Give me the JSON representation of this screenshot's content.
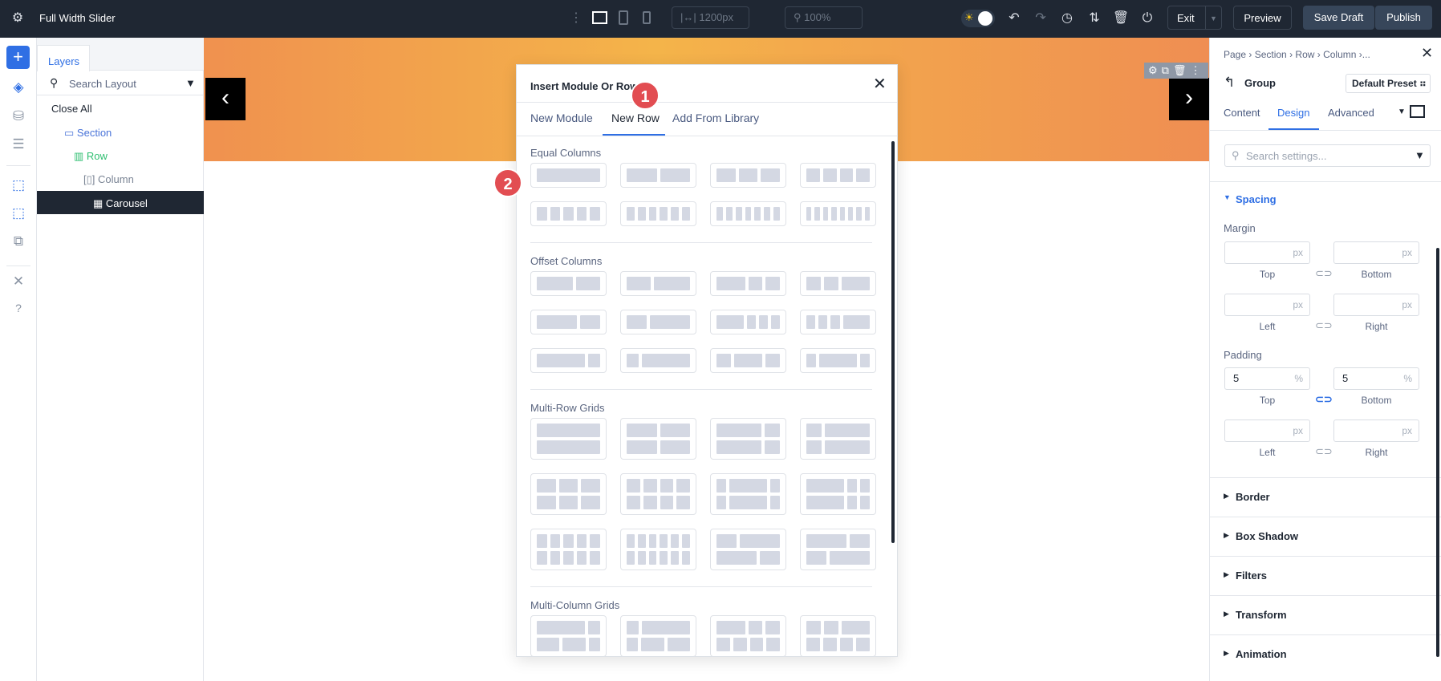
{
  "topbar": {
    "title": "Full Width Slider",
    "width_value": "1200px",
    "zoom_value": "100%",
    "exit": "Exit",
    "preview": "Preview",
    "save_draft": "Save Draft",
    "publish": "Publish",
    "icons": [
      "gear-icon",
      "more-vertical-icon",
      "desktop-icon",
      "tablet-icon",
      "phone-icon",
      "width-icon",
      "zoom-icon",
      "theme-toggle",
      "undo-icon",
      "redo-icon",
      "history-icon",
      "sort-icon",
      "trash-icon",
      "power-icon"
    ]
  },
  "layers": {
    "tab": "Layers",
    "search_placeholder": "Search Layout",
    "close_all": "Close All",
    "items": [
      {
        "label": "Section",
        "color": "#4a74d9"
      },
      {
        "label": "Row",
        "color": "#2fbf71"
      },
      {
        "label": "Column",
        "color": "#7a8494"
      },
      {
        "label": "Carousel",
        "color": "#ffffff"
      }
    ]
  },
  "modal": {
    "title": "Insert Module Or Row",
    "tabs": [
      "New Module",
      "New Row",
      "Add From Library"
    ],
    "active_tab": "New Row",
    "sections": [
      {
        "label": "Equal Columns",
        "layouts": [
          [
            [
              1
            ]
          ],
          [
            [
              1,
              1
            ]
          ],
          [
            [
              1,
              1,
              1
            ]
          ],
          [
            [
              1,
              1,
              1,
              1
            ]
          ],
          [
            [
              1,
              1,
              1,
              1,
              1
            ]
          ],
          [
            [
              1,
              1,
              1,
              1,
              1,
              1
            ]
          ],
          [
            [
              1,
              1,
              1,
              1,
              1,
              1,
              1
            ]
          ],
          [
            [
              1,
              1,
              1,
              1,
              1,
              1,
              1,
              1
            ]
          ]
        ]
      },
      {
        "label": "Offset Columns",
        "layouts": [
          [
            [
              3,
              2
            ]
          ],
          [
            [
              2,
              3
            ]
          ],
          [
            [
              2,
              1,
              1
            ]
          ],
          [
            [
              1,
              1,
              2
            ]
          ],
          [
            [
              2,
              1
            ]
          ],
          [
            [
              1,
              2
            ]
          ],
          [
            [
              3,
              1,
              1,
              1
            ]
          ],
          [
            [
              1,
              1,
              1,
              3
            ]
          ],
          [
            [
              4,
              1
            ]
          ],
          [
            [
              1,
              4
            ]
          ],
          [
            [
              1,
              2,
              1
            ]
          ],
          [
            [
              1,
              4,
              1
            ]
          ]
        ]
      },
      {
        "label": "Multi-Row Grids",
        "layouts": [
          [
            [
              1
            ],
            [
              1
            ]
          ],
          [
            [
              1,
              1
            ],
            [
              1,
              1
            ]
          ],
          [
            [
              3,
              1
            ],
            [
              3,
              1
            ]
          ],
          [
            [
              1,
              3
            ],
            [
              1,
              3
            ]
          ],
          [
            [
              1,
              1,
              1
            ],
            [
              1,
              1,
              1
            ]
          ],
          [
            [
              1,
              1,
              1,
              1
            ],
            [
              1,
              1,
              1,
              1
            ]
          ],
          [
            [
              1,
              4,
              1
            ],
            [
              1,
              4,
              1
            ]
          ],
          [
            [
              4,
              1,
              1
            ],
            [
              4,
              1,
              1
            ]
          ],
          [
            [
              1,
              1,
              1,
              1,
              1
            ],
            [
              1,
              1,
              1,
              1,
              1
            ]
          ],
          [
            [
              1,
              1,
              1,
              1,
              1,
              1
            ],
            [
              1,
              1,
              1,
              1,
              1,
              1
            ]
          ],
          [
            [
              1,
              2
            ],
            [
              2,
              1
            ]
          ],
          [
            [
              2,
              1
            ],
            [
              1,
              2
            ]
          ]
        ]
      },
      {
        "label": "Multi-Column Grids",
        "layouts": [
          [
            [
              4,
              1
            ],
            [
              2,
              2,
              1
            ]
          ],
          [
            [
              1,
              4
            ],
            [
              1,
              2,
              2
            ]
          ],
          [
            [
              2,
              1,
              1
            ],
            [
              1,
              1,
              1,
              1
            ]
          ],
          [
            [
              1,
              1,
              2
            ],
            [
              1,
              1,
              1,
              1
            ]
          ]
        ]
      }
    ]
  },
  "annotations": [
    "1",
    "2"
  ],
  "rpanel": {
    "breadcrumb": [
      "Page",
      "Section",
      "Row",
      "Column",
      "..."
    ],
    "group": "Group",
    "preset": "Default Preset",
    "tabs": [
      "Content",
      "Design",
      "Advanced"
    ],
    "active_tab": "Design",
    "search_placeholder": "Search settings...",
    "spacing": "Spacing",
    "margin": "Margin",
    "padding": "Padding",
    "margin_fields": [
      {
        "label": "Top",
        "value": "",
        "unit": "px"
      },
      {
        "label": "Bottom",
        "value": "",
        "unit": "px"
      },
      {
        "label": "Left",
        "value": "",
        "unit": "px"
      },
      {
        "label": "Right",
        "value": "",
        "unit": "px"
      }
    ],
    "padding_fields": [
      {
        "label": "Top",
        "value": "5",
        "unit": "%"
      },
      {
        "label": "Bottom",
        "value": "5",
        "unit": "%"
      },
      {
        "label": "Left",
        "value": "",
        "unit": "px"
      },
      {
        "label": "Right",
        "value": "",
        "unit": "px"
      }
    ],
    "sections": [
      "Border",
      "Box Shadow",
      "Filters",
      "Transform",
      "Animation"
    ]
  },
  "colors": {
    "accent": "#2f6fe4",
    "topbar": "#1f2733",
    "badge": "#e24d52"
  }
}
